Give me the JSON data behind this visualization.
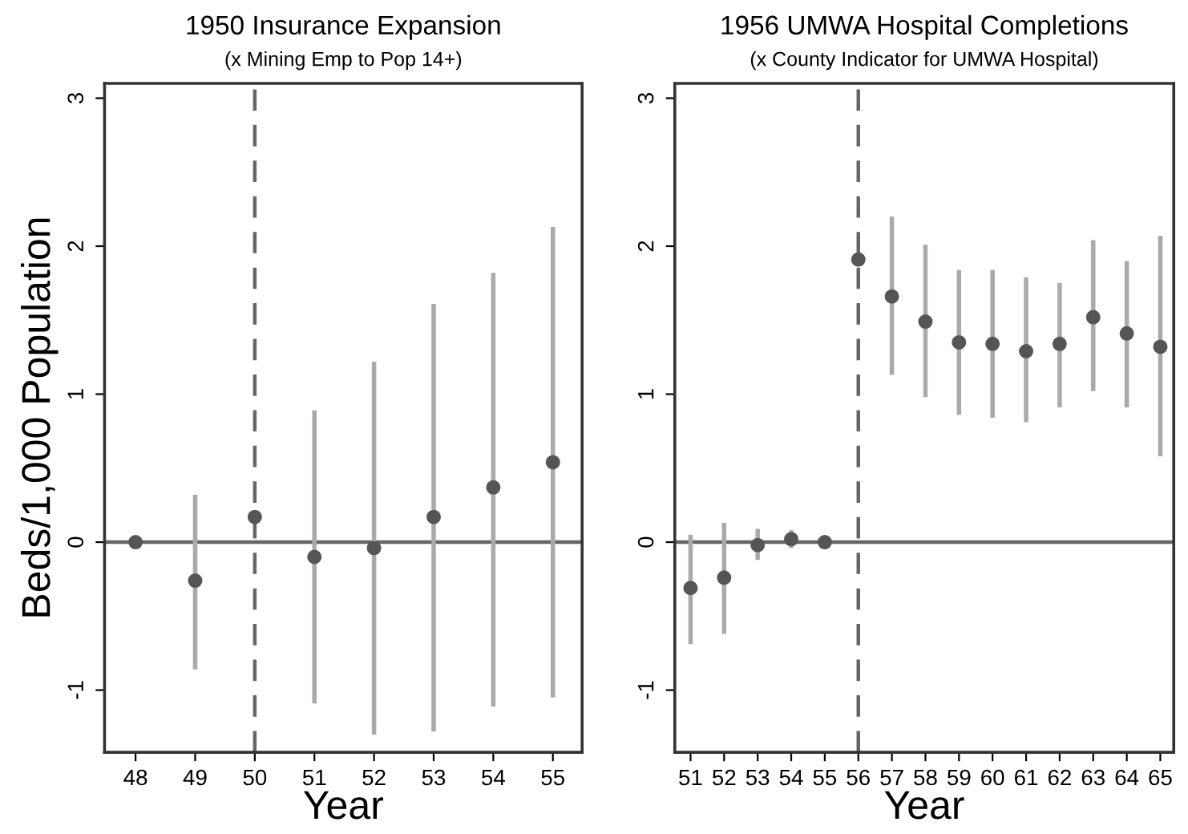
{
  "chart_data": [
    {
      "type": "scatter",
      "title": "1950 Insurance Expansion",
      "subtitle": "(x Mining Emp to Pop 14+)",
      "xlabel": "Year",
      "ylabel": "Beds/1,000 Population",
      "x": [
        48,
        49,
        50,
        51,
        52,
        53,
        54,
        55
      ],
      "series": [
        {
          "color": "#555555",
          "values": [
            0,
            -0.26,
            0.17,
            -0.1,
            -0.04,
            0.17,
            0.37,
            0.54
          ],
          "errors": [
            null,
            [
              -0.86,
              0.32
            ],
            null,
            [
              -1.09,
              0.89
            ],
            [
              -1.3,
              1.22
            ],
            [
              -1.28,
              1.61
            ],
            [
              -1.11,
              1.82
            ],
            [
              -1.05,
              2.13
            ]
          ]
        }
      ],
      "xlim": [
        47.48,
        55.49
      ],
      "ylim": [
        -1.42,
        3.1
      ],
      "xticks": [
        48,
        49,
        50,
        51,
        52,
        53,
        54,
        55
      ],
      "yticks": [
        -1,
        0,
        1,
        2,
        3
      ],
      "marker": "circle",
      "grid": false,
      "ref_lines": [
        {
          "axis": "y",
          "value": 0,
          "color": "#666666",
          "line_style": "solid"
        },
        {
          "axis": "x",
          "value": 50,
          "color": "#666666",
          "line_style": "dashed"
        }
      ]
    },
    {
      "type": "scatter",
      "title": "1956 UMWA Hospital Completions",
      "subtitle": "(x County Indicator for UMWA Hospital)",
      "xlabel": "Year",
      "x": [
        51,
        52,
        53,
        54,
        55,
        56,
        57,
        58,
        59,
        60,
        61,
        62,
        63,
        64,
        65
      ],
      "series": [
        {
          "color": "#555555",
          "values": [
            -0.31,
            -0.24,
            -0.02,
            0.02,
            0,
            1.91,
            1.66,
            1.49,
            1.35,
            1.34,
            1.29,
            1.34,
            1.52,
            1.41,
            1.32
          ],
          "errors": [
            [
              -0.69,
              0.05
            ],
            [
              -0.62,
              0.13
            ],
            [
              -0.12,
              0.09
            ],
            [
              -0.04,
              0.08
            ],
            null,
            null,
            [
              1.13,
              2.2
            ],
            [
              0.98,
              2.01
            ],
            [
              0.86,
              1.84
            ],
            [
              0.84,
              1.84
            ],
            [
              0.81,
              1.79
            ],
            [
              0.91,
              1.75
            ],
            [
              1.02,
              2.04
            ],
            [
              0.91,
              1.9
            ],
            [
              0.58,
              2.07
            ]
          ]
        }
      ],
      "xlim": [
        50.53,
        65.4
      ],
      "ylim": [
        -1.42,
        3.1
      ],
      "xticks": [
        51,
        52,
        53,
        54,
        55,
        56,
        57,
        58,
        59,
        60,
        61,
        62,
        63,
        64,
        65
      ],
      "yticks": [
        -1,
        0,
        1,
        2,
        3
      ],
      "marker": "circle",
      "grid": false,
      "ref_lines": [
        {
          "axis": "y",
          "value": 0,
          "color": "#666666",
          "line_style": "solid"
        },
        {
          "axis": "x",
          "value": 56,
          "color": "#666666",
          "line_style": "dashed"
        }
      ]
    }
  ]
}
